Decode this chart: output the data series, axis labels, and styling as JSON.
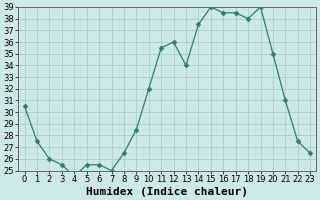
{
  "x": [
    0,
    1,
    2,
    3,
    4,
    5,
    6,
    7,
    8,
    9,
    10,
    11,
    12,
    13,
    14,
    15,
    16,
    17,
    18,
    19,
    20,
    21,
    22,
    23
  ],
  "y": [
    30.5,
    27.5,
    26.0,
    25.5,
    24.5,
    25.5,
    25.5,
    25.0,
    26.5,
    28.5,
    32.0,
    35.5,
    36.0,
    34.0,
    37.5,
    39.0,
    38.5,
    38.5,
    38.0,
    39.0,
    35.0,
    31.0,
    27.5,
    26.5
  ],
  "xlabel": "Humidex (Indice chaleur)",
  "xlim": [
    -0.5,
    23.5
  ],
  "ylim": [
    25,
    39
  ],
  "yticks": [
    25,
    26,
    27,
    28,
    29,
    30,
    31,
    32,
    33,
    34,
    35,
    36,
    37,
    38,
    39
  ],
  "xticks": [
    0,
    1,
    2,
    3,
    4,
    5,
    6,
    7,
    8,
    9,
    10,
    11,
    12,
    13,
    14,
    15,
    16,
    17,
    18,
    19,
    20,
    21,
    22,
    23
  ],
  "line_color": "#2e7d6e",
  "marker": "D",
  "marker_size": 2.5,
  "bg_color": "#cce9e8",
  "grid_color": "#a0c8c8",
  "tick_fontsize": 6,
  "xlabel_fontsize": 8
}
